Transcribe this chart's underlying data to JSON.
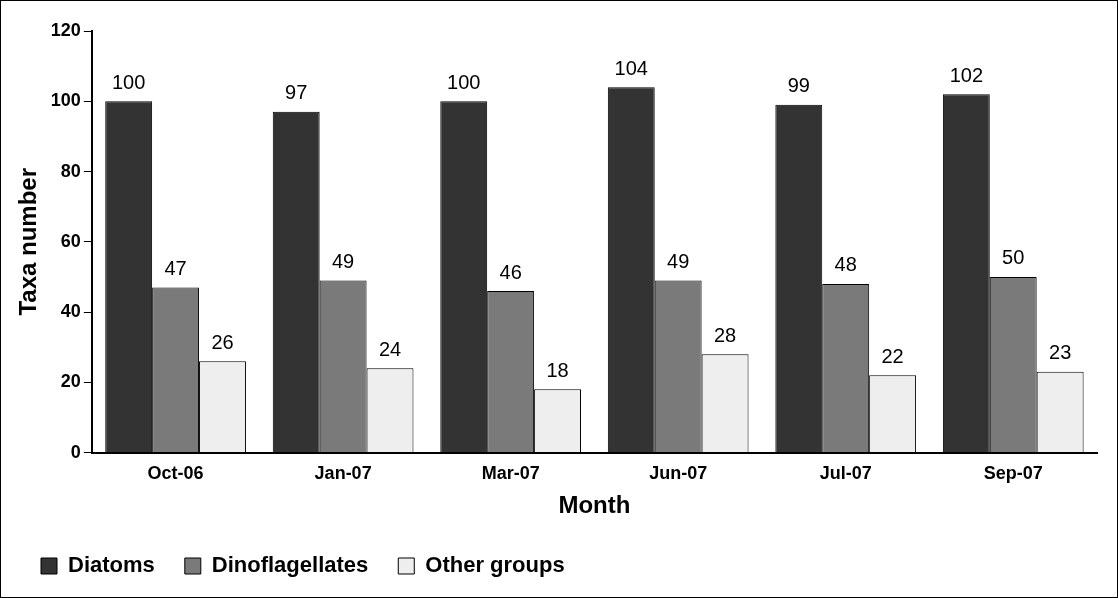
{
  "chart_data": {
    "type": "bar",
    "xlabel": "Month",
    "ylabel": "Taxa number",
    "categories": [
      "Oct-06",
      "Jan-07",
      "Mar-07",
      "Jun-07",
      "Jul-07",
      "Sep-07"
    ],
    "series": [
      {
        "name": "Diatoms",
        "color": "#333333",
        "values": [
          100,
          97,
          100,
          104,
          99,
          102
        ]
      },
      {
        "name": "Dinoflagellates",
        "color": "#7a7a7a",
        "values": [
          47,
          49,
          46,
          49,
          48,
          50
        ]
      },
      {
        "name": "Other groups",
        "color": "#eeeeee",
        "values": [
          26,
          24,
          18,
          28,
          22,
          23
        ]
      }
    ],
    "ylim": [
      0,
      120
    ],
    "yticks": [
      0,
      20,
      40,
      60,
      80,
      100,
      120
    ],
    "grid": false,
    "legend": "bottom",
    "data_labels": true
  }
}
